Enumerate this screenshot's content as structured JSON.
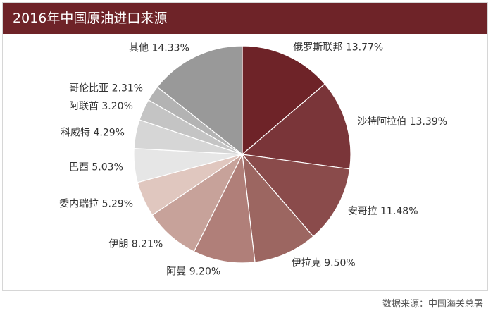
{
  "header": {
    "title": "2016年中国原油进口来源"
  },
  "footer": {
    "source": "数据来源：中国海关总署"
  },
  "chart_data": {
    "type": "pie",
    "title": "2016年中国原油进口来源",
    "unit": "%",
    "slices": [
      {
        "label": "俄罗斯联邦",
        "value": 13.77,
        "value_text": "13.77%",
        "color": "#6e2328"
      },
      {
        "label": "沙特阿拉伯",
        "value": 13.39,
        "value_text": "13.39%",
        "color": "#7a3539"
      },
      {
        "label": "安哥拉",
        "value": 11.48,
        "value_text": "11.48%",
        "color": "#8a4b4b"
      },
      {
        "label": "伊拉克",
        "value": 9.5,
        "value_text": "9.50%",
        "color": "#9c6661"
      },
      {
        "label": "阿曼",
        "value": 9.2,
        "value_text": "9.20%",
        "color": "#b07f79"
      },
      {
        "label": "伊朗",
        "value": 8.21,
        "value_text": "8.21%",
        "color": "#c7a29a"
      },
      {
        "label": "委内瑞拉",
        "value": 5.29,
        "value_text": "5.29%",
        "color": "#e0c7bf"
      },
      {
        "label": "巴西",
        "value": 5.03,
        "value_text": "5.03%",
        "color": "#e6e6e6"
      },
      {
        "label": "科威特",
        "value": 4.29,
        "value_text": "4.29%",
        "color": "#d6d6d6"
      },
      {
        "label": "阿联酋",
        "value": 3.2,
        "value_text": "3.20%",
        "color": "#c4c4c4"
      },
      {
        "label": "哥伦比亚",
        "value": 2.31,
        "value_text": "2.31%",
        "color": "#b3b3b3"
      },
      {
        "label": "其他",
        "value": 14.33,
        "value_text": "14.33%",
        "color": "#999999"
      }
    ]
  }
}
